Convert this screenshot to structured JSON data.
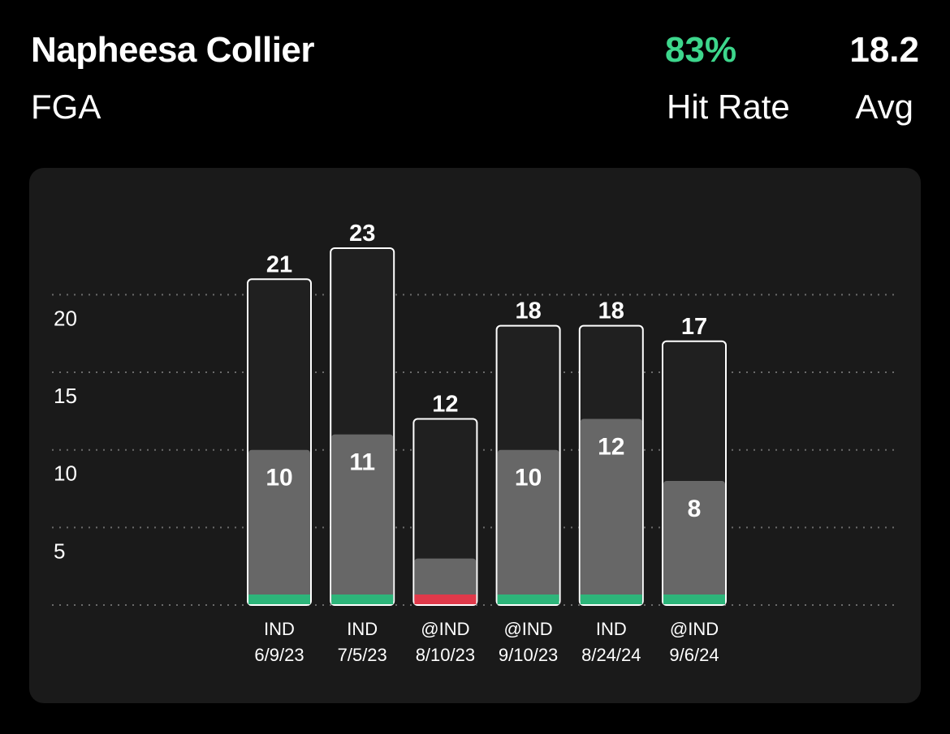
{
  "header": {
    "player_name": "Napheesa Collier",
    "stat_label": "FGA",
    "hit_rate_value": "83%",
    "hit_rate_label": "Hit Rate",
    "avg_value": "18.2",
    "avg_label": "Avg"
  },
  "colors": {
    "background": "#000000",
    "card": "#1a1a1a",
    "bar_fill": "#202020",
    "bar_outline": "#ffffff",
    "inner_bar": "#676767",
    "hit": "#2db57a",
    "miss": "#e0394a",
    "hit_rate_text": "#3dd68c",
    "grid": "#6a6a6a"
  },
  "chart_data": {
    "type": "bar",
    "categories": [
      {
        "opponent": "IND",
        "date": "6/9/23"
      },
      {
        "opponent": "IND",
        "date": "7/5/23"
      },
      {
        "opponent": "@IND",
        "date": "8/10/23"
      },
      {
        "opponent": "@IND",
        "date": "9/10/23"
      },
      {
        "opponent": "IND",
        "date": "8/24/24"
      },
      {
        "opponent": "@IND",
        "date": "9/6/24"
      }
    ],
    "series": [
      {
        "values": [
          21,
          23,
          12,
          18,
          18,
          17
        ]
      },
      {
        "values": [
          10,
          11,
          3,
          10,
          12,
          8
        ]
      }
    ],
    "value_labels": [
      "21",
      "23",
      "12",
      "18",
      "18",
      "17"
    ],
    "inner_labels": [
      "10",
      "11",
      "",
      "10",
      "12",
      "8"
    ],
    "outcomes": [
      "hit",
      "hit",
      "miss",
      "hit",
      "hit",
      "hit"
    ],
    "y_ticks": [
      {
        "value": 5,
        "label": "5"
      },
      {
        "value": 10,
        "label": "10"
      },
      {
        "value": 15,
        "label": "15"
      },
      {
        "value": 20,
        "label": "20"
      }
    ],
    "ylim": [
      0,
      23
    ],
    "grid": true,
    "title": "",
    "xlabel": "",
    "ylabel": ""
  }
}
